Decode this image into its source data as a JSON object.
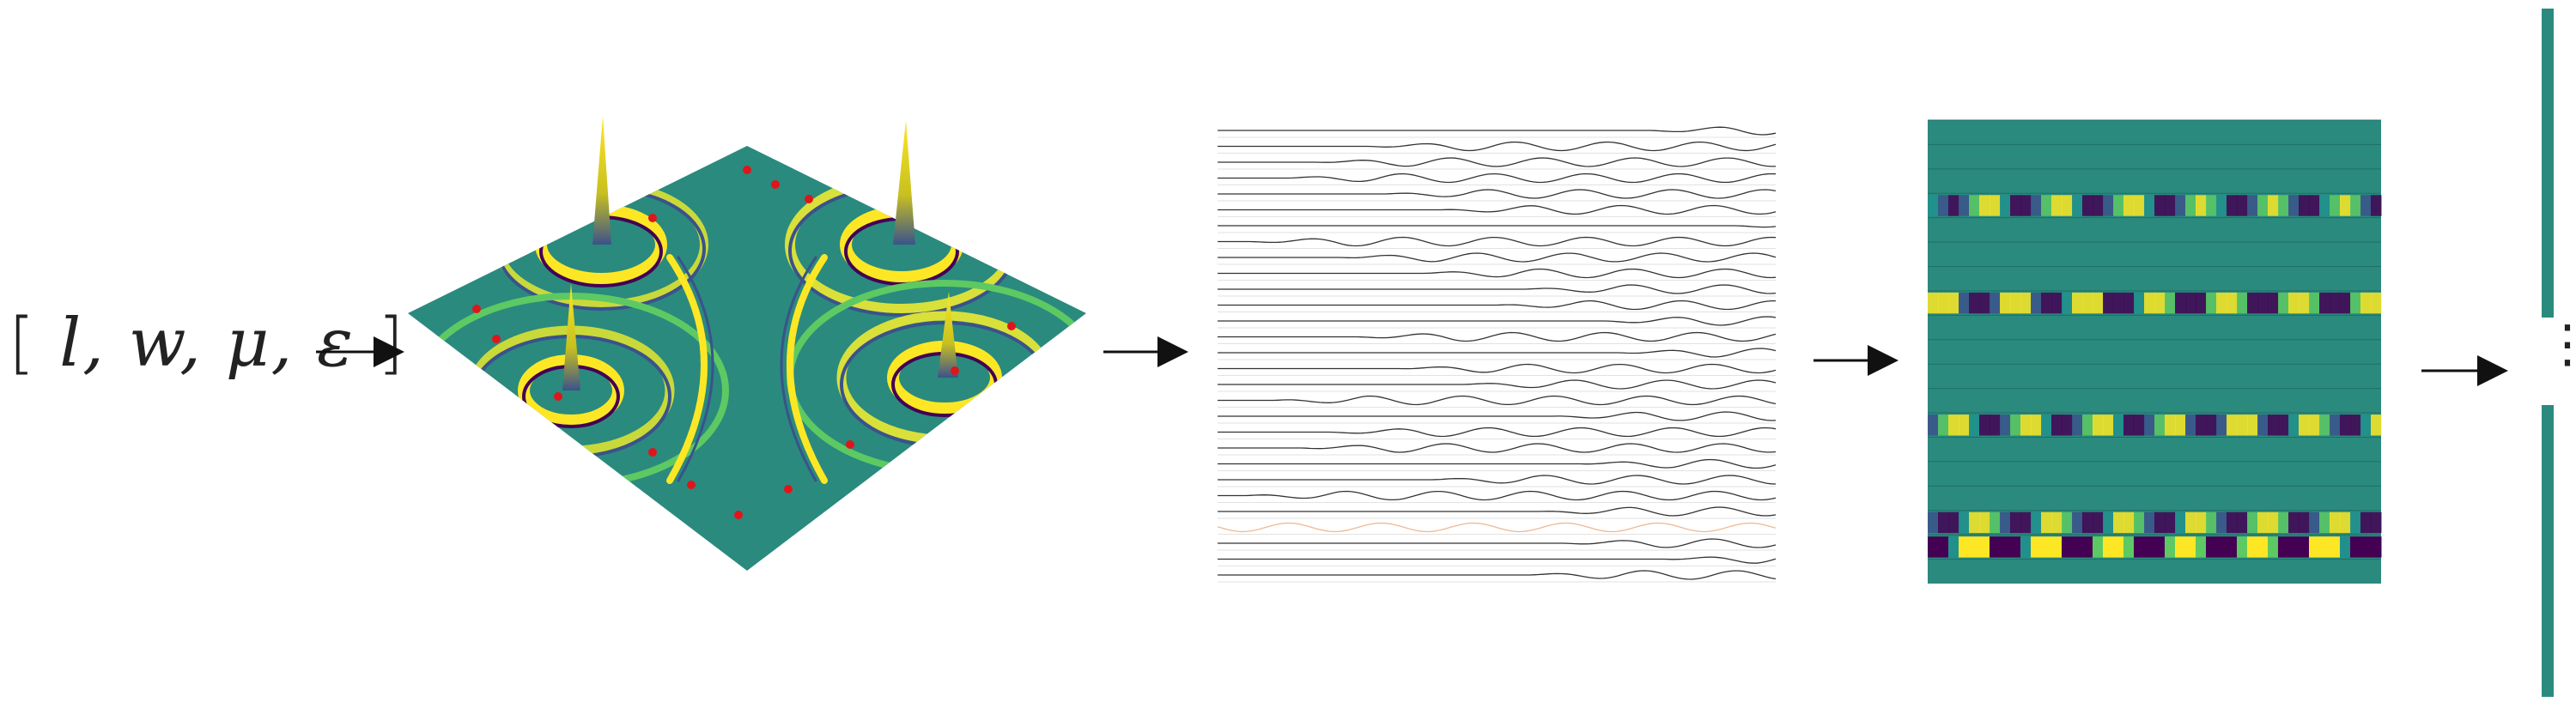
{
  "input_vector": {
    "open": "[",
    "content": "l, w, μ, ε",
    "close": "]"
  },
  "pipeline": [
    "parameter-vector",
    "wave-field-surface",
    "receiver-traces",
    "trace-heatmap",
    "feature-vector"
  ],
  "colors": {
    "viridis": [
      "#440154",
      "#3b528b",
      "#21908d",
      "#5dc963",
      "#fde725"
    ],
    "background": "#2a8a7e",
    "marker": "#e0151a",
    "trace": "#333333",
    "highlight_trace": "#f0b890"
  },
  "continuation_symbol": "⋮"
}
